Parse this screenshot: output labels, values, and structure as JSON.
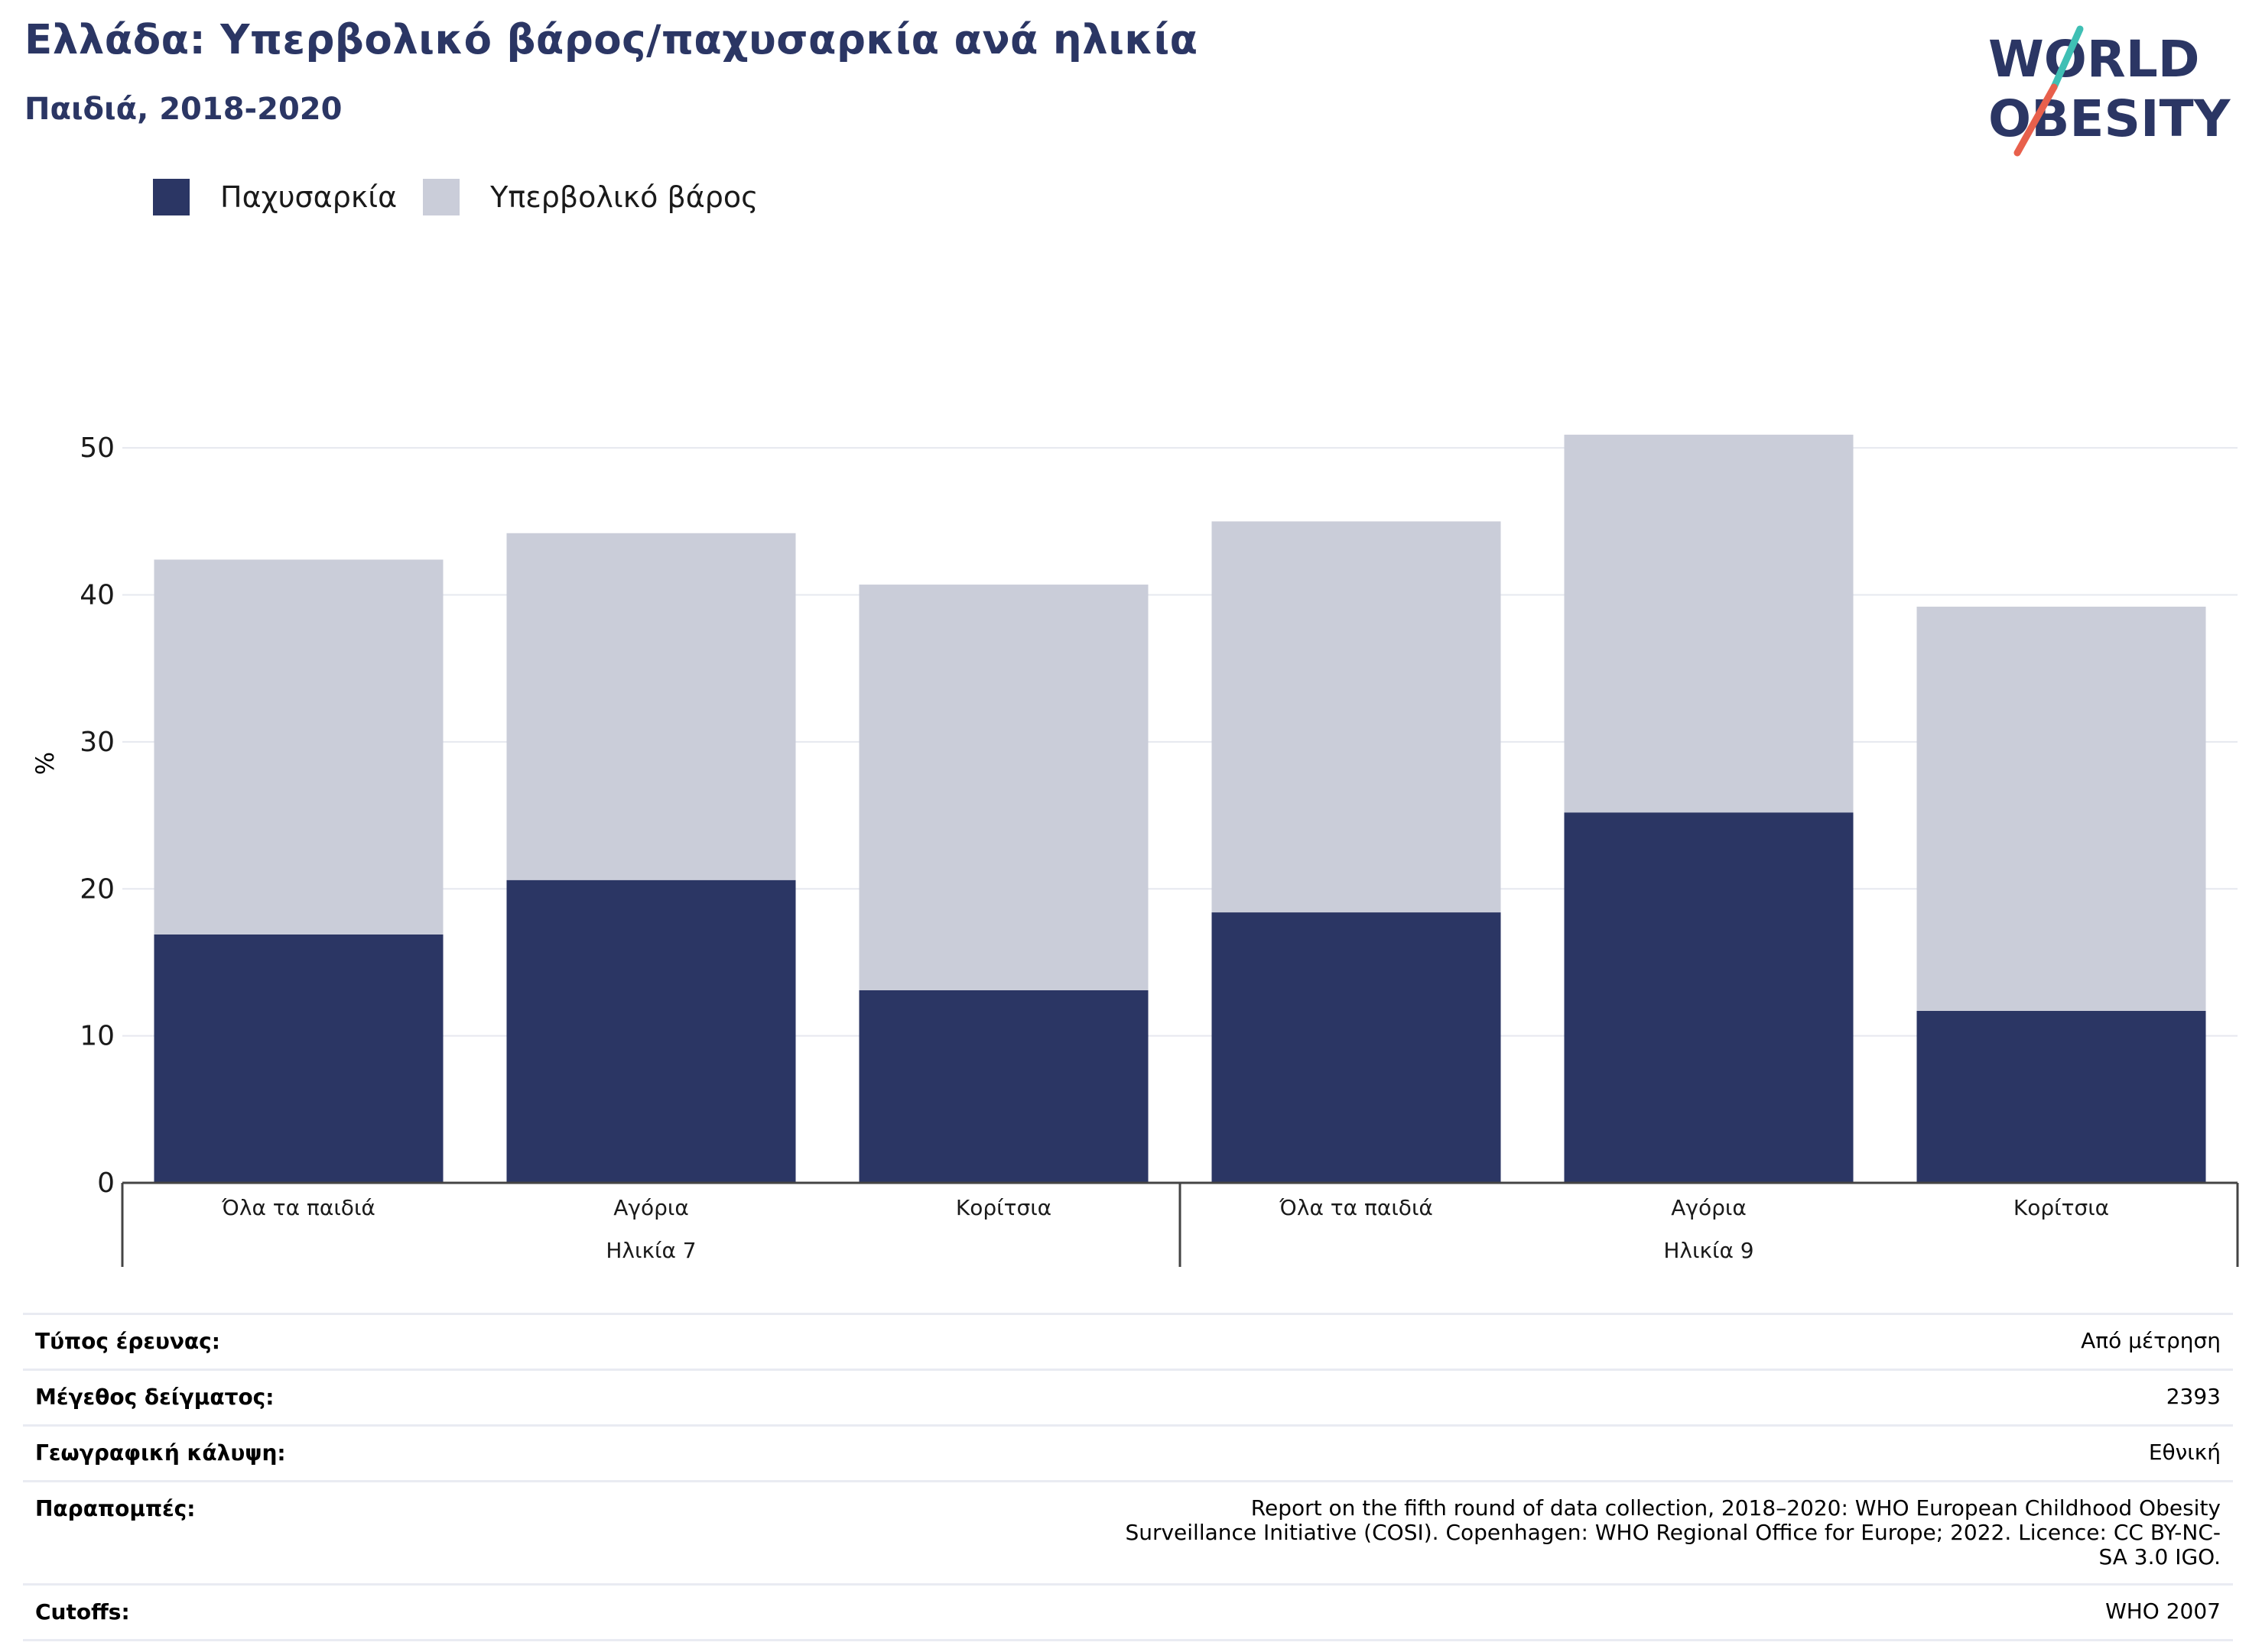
{
  "title": "Ελλάδα: Υπερβολικό βάρος/παχυσαρκία ανά ηλικία",
  "subtitle": "Παιδιά, 2018-2020",
  "logo": {
    "line1": "WORLD",
    "line2": "OBESITY",
    "colors": {
      "text": "#2b3664",
      "slash_teal": "#3fbfb4",
      "slash_red": "#e8604c"
    }
  },
  "legend": [
    {
      "label": "Παχυσαρκία",
      "color": "#2b3664"
    },
    {
      "label": "Υπερβολικό βάρος",
      "color": "#cacdd9"
    }
  ],
  "chart_data": {
    "type": "bar",
    "stacked": true,
    "ylabel": "%",
    "ylim": [
      0,
      55
    ],
    "yticks": [
      0,
      10,
      20,
      30,
      40,
      50
    ],
    "grid": true,
    "legend_position": "top-left",
    "categories": [
      "Όλα τα παιδιά",
      "Αγόρια",
      "Κορίτσια",
      "Όλα τα παιδιά",
      "Αγόρια",
      "Κορίτσια"
    ],
    "groups": [
      {
        "label": "Ηλικία 7",
        "categories": [
          "Όλα τα παιδιά",
          "Αγόρια",
          "Κορίτσια"
        ]
      },
      {
        "label": "Ηλικία 9",
        "categories": [
          "Όλα τα παιδιά",
          "Αγόρια",
          "Κορίτσια"
        ]
      }
    ],
    "series": [
      {
        "name": "Παχυσαρκία",
        "color": "#2b3664",
        "values": [
          16.9,
          20.6,
          13.1,
          18.4,
          25.2,
          11.7
        ]
      },
      {
        "name": "Υπερβολικό βάρος",
        "color": "#cacdd9",
        "values": [
          25.5,
          23.6,
          27.6,
          26.6,
          25.7,
          27.5
        ]
      }
    ]
  },
  "info": [
    {
      "label": "Τύπος έρευνας:",
      "value": "Από μέτρηση"
    },
    {
      "label": "Μέγεθος δείγματος:",
      "value": "2393"
    },
    {
      "label": "Γεωγραφική κάλυψη:",
      "value": "Εθνική"
    },
    {
      "label": "Παραπομπές:",
      "value": "Report on the fifth round of data collection, 2018–2020: WHO European Childhood Obesity Surveillance Initiative (COSI). Copenhagen: WHO Regional Office for Europe; 2022. Licence: CC BY-NC-SA 3.0 IGO."
    },
    {
      "label": "Cutoffs:",
      "value": "WHO 2007"
    }
  ]
}
